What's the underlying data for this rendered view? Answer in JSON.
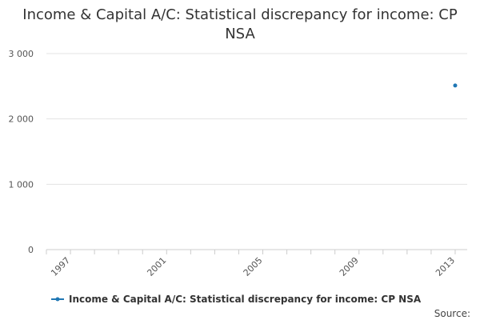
{
  "chart_data": {
    "type": "line",
    "title": "Income & Capital A/C: Statistical discrepancy for income: CP NSA",
    "title_lines": [
      "Income & Capital A/C: Statistical discrepancy for income: CP",
      "NSA"
    ],
    "xlabel": "",
    "ylabel": "",
    "x_ticks": [
      "1997",
      "2001",
      "2005",
      "2009",
      "2013"
    ],
    "x_range": [
      1996,
      2013.5
    ],
    "y_ticks": [
      "3 000",
      "2 000",
      "1 000",
      "0"
    ],
    "y_tick_values": [
      3000,
      2000,
      1000,
      0
    ],
    "ylim": [
      0,
      3000
    ],
    "grid": true,
    "legend_position": "bottom",
    "series": [
      {
        "name": "Income & Capital A/C: Statistical discrepancy for income: CP NSA",
        "color": "#1f77b4",
        "points": [
          {
            "x": 2013,
            "y": 2512
          }
        ]
      }
    ]
  },
  "source_label": "Source:"
}
